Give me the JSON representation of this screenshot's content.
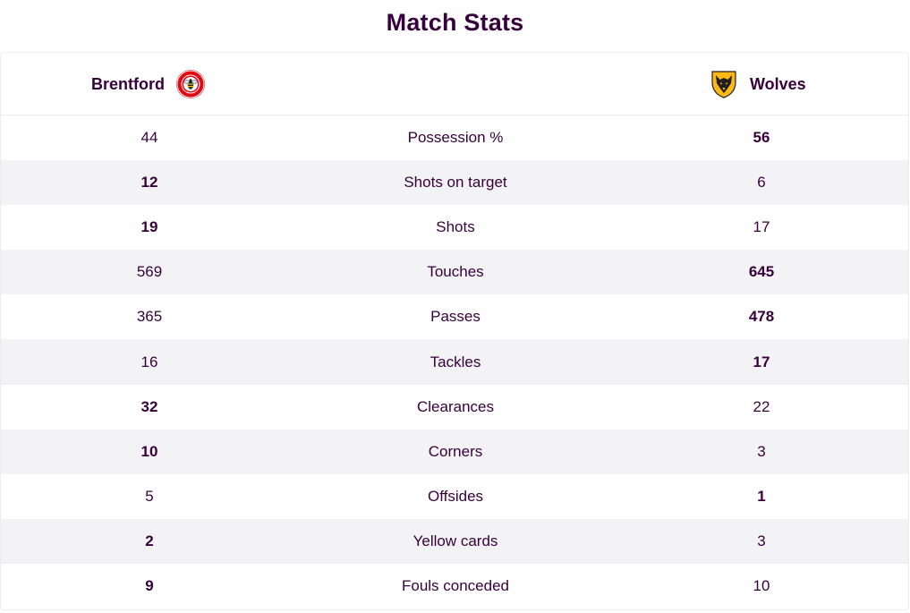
{
  "title": "Match Stats",
  "teams": {
    "home": {
      "name": "Brentford",
      "crest_icon": "brentford-crest-icon",
      "crest_color": "#e30613"
    },
    "away": {
      "name": "Wolves",
      "crest_icon": "wolves-crest-icon",
      "crest_color": "#fdb913"
    }
  },
  "colors": {
    "text": "#37003c",
    "stripe": "#f3f2f5",
    "border": "#ececef"
  },
  "stats": [
    {
      "label": "Possession %",
      "home": "44",
      "away": "56",
      "leader": "away"
    },
    {
      "label": "Shots on target",
      "home": "12",
      "away": "6",
      "leader": "home"
    },
    {
      "label": "Shots",
      "home": "19",
      "away": "17",
      "leader": "home"
    },
    {
      "label": "Touches",
      "home": "569",
      "away": "645",
      "leader": "away"
    },
    {
      "label": "Passes",
      "home": "365",
      "away": "478",
      "leader": "away"
    },
    {
      "label": "Tackles",
      "home": "16",
      "away": "17",
      "leader": "away"
    },
    {
      "label": "Clearances",
      "home": "32",
      "away": "22",
      "leader": "home"
    },
    {
      "label": "Corners",
      "home": "10",
      "away": "3",
      "leader": "home"
    },
    {
      "label": "Offsides",
      "home": "5",
      "away": "1",
      "leader": "away"
    },
    {
      "label": "Yellow cards",
      "home": "2",
      "away": "3",
      "leader": "home"
    },
    {
      "label": "Fouls conceded",
      "home": "9",
      "away": "10",
      "leader": "home"
    }
  ]
}
